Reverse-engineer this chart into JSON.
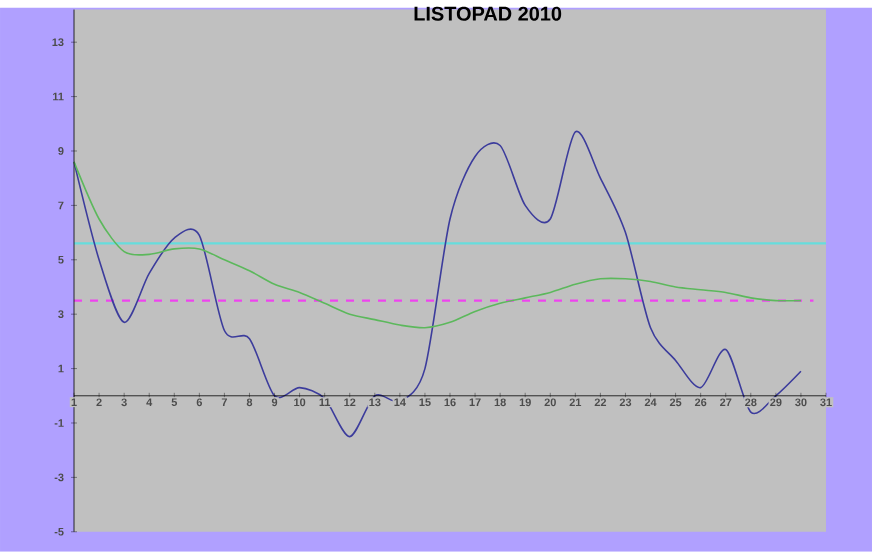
{
  "chart_data": {
    "type": "line",
    "title": "LISTOPAD 2010",
    "x": [
      1,
      2,
      3,
      4,
      5,
      6,
      7,
      8,
      9,
      10,
      11,
      12,
      13,
      14,
      15,
      16,
      17,
      18,
      19,
      20,
      21,
      22,
      23,
      24,
      25,
      26,
      27,
      28,
      29,
      30
    ],
    "series": [
      {
        "color": "#3c3c9c",
        "values": [
          8.6,
          5.0,
          2.7,
          4.5,
          5.8,
          5.9,
          2.4,
          2.1,
          0,
          0.3,
          -0.1,
          -1.5,
          0,
          -0.2,
          1.0,
          6.5,
          8.8,
          9.2,
          7.0,
          6.5,
          9.7,
          8.0,
          6.0,
          2.5,
          1.3,
          0.3,
          1.7,
          -0.6,
          0,
          0.9
        ]
      },
      {
        "color": "#5cb85c",
        "values": [
          8.6,
          6.5,
          5.3,
          5.2,
          5.4,
          5.4,
          5.0,
          4.6,
          4.1,
          3.8,
          3.4,
          3.0,
          2.8,
          2.6,
          2.5,
          2.7,
          3.1,
          3.4,
          3.6,
          3.8,
          4.1,
          4.3,
          4.3,
          4.2,
          4.0,
          3.9,
          3.8,
          3.6,
          3.5,
          3.5
        ]
      }
    ],
    "xlim": [
      1,
      31
    ],
    "xticks": [
      1,
      2,
      3,
      4,
      5,
      6,
      7,
      8,
      9,
      10,
      11,
      12,
      13,
      14,
      15,
      16,
      17,
      18,
      19,
      20,
      21,
      22,
      23,
      24,
      25,
      26,
      27,
      28,
      29,
      30,
      31
    ],
    "ylim": [
      -5,
      14.2
    ],
    "yticks": [
      -5,
      -3,
      -1,
      1,
      3,
      5,
      7,
      9,
      11,
      13
    ],
    "ref_lines": [
      {
        "axis": "y",
        "value": 5.6,
        "color": "#66dddd"
      },
      {
        "axis": "y",
        "value": 3.5,
        "color": "#ee44ee",
        "line_style": "dashed"
      }
    ],
    "marker": "none"
  }
}
